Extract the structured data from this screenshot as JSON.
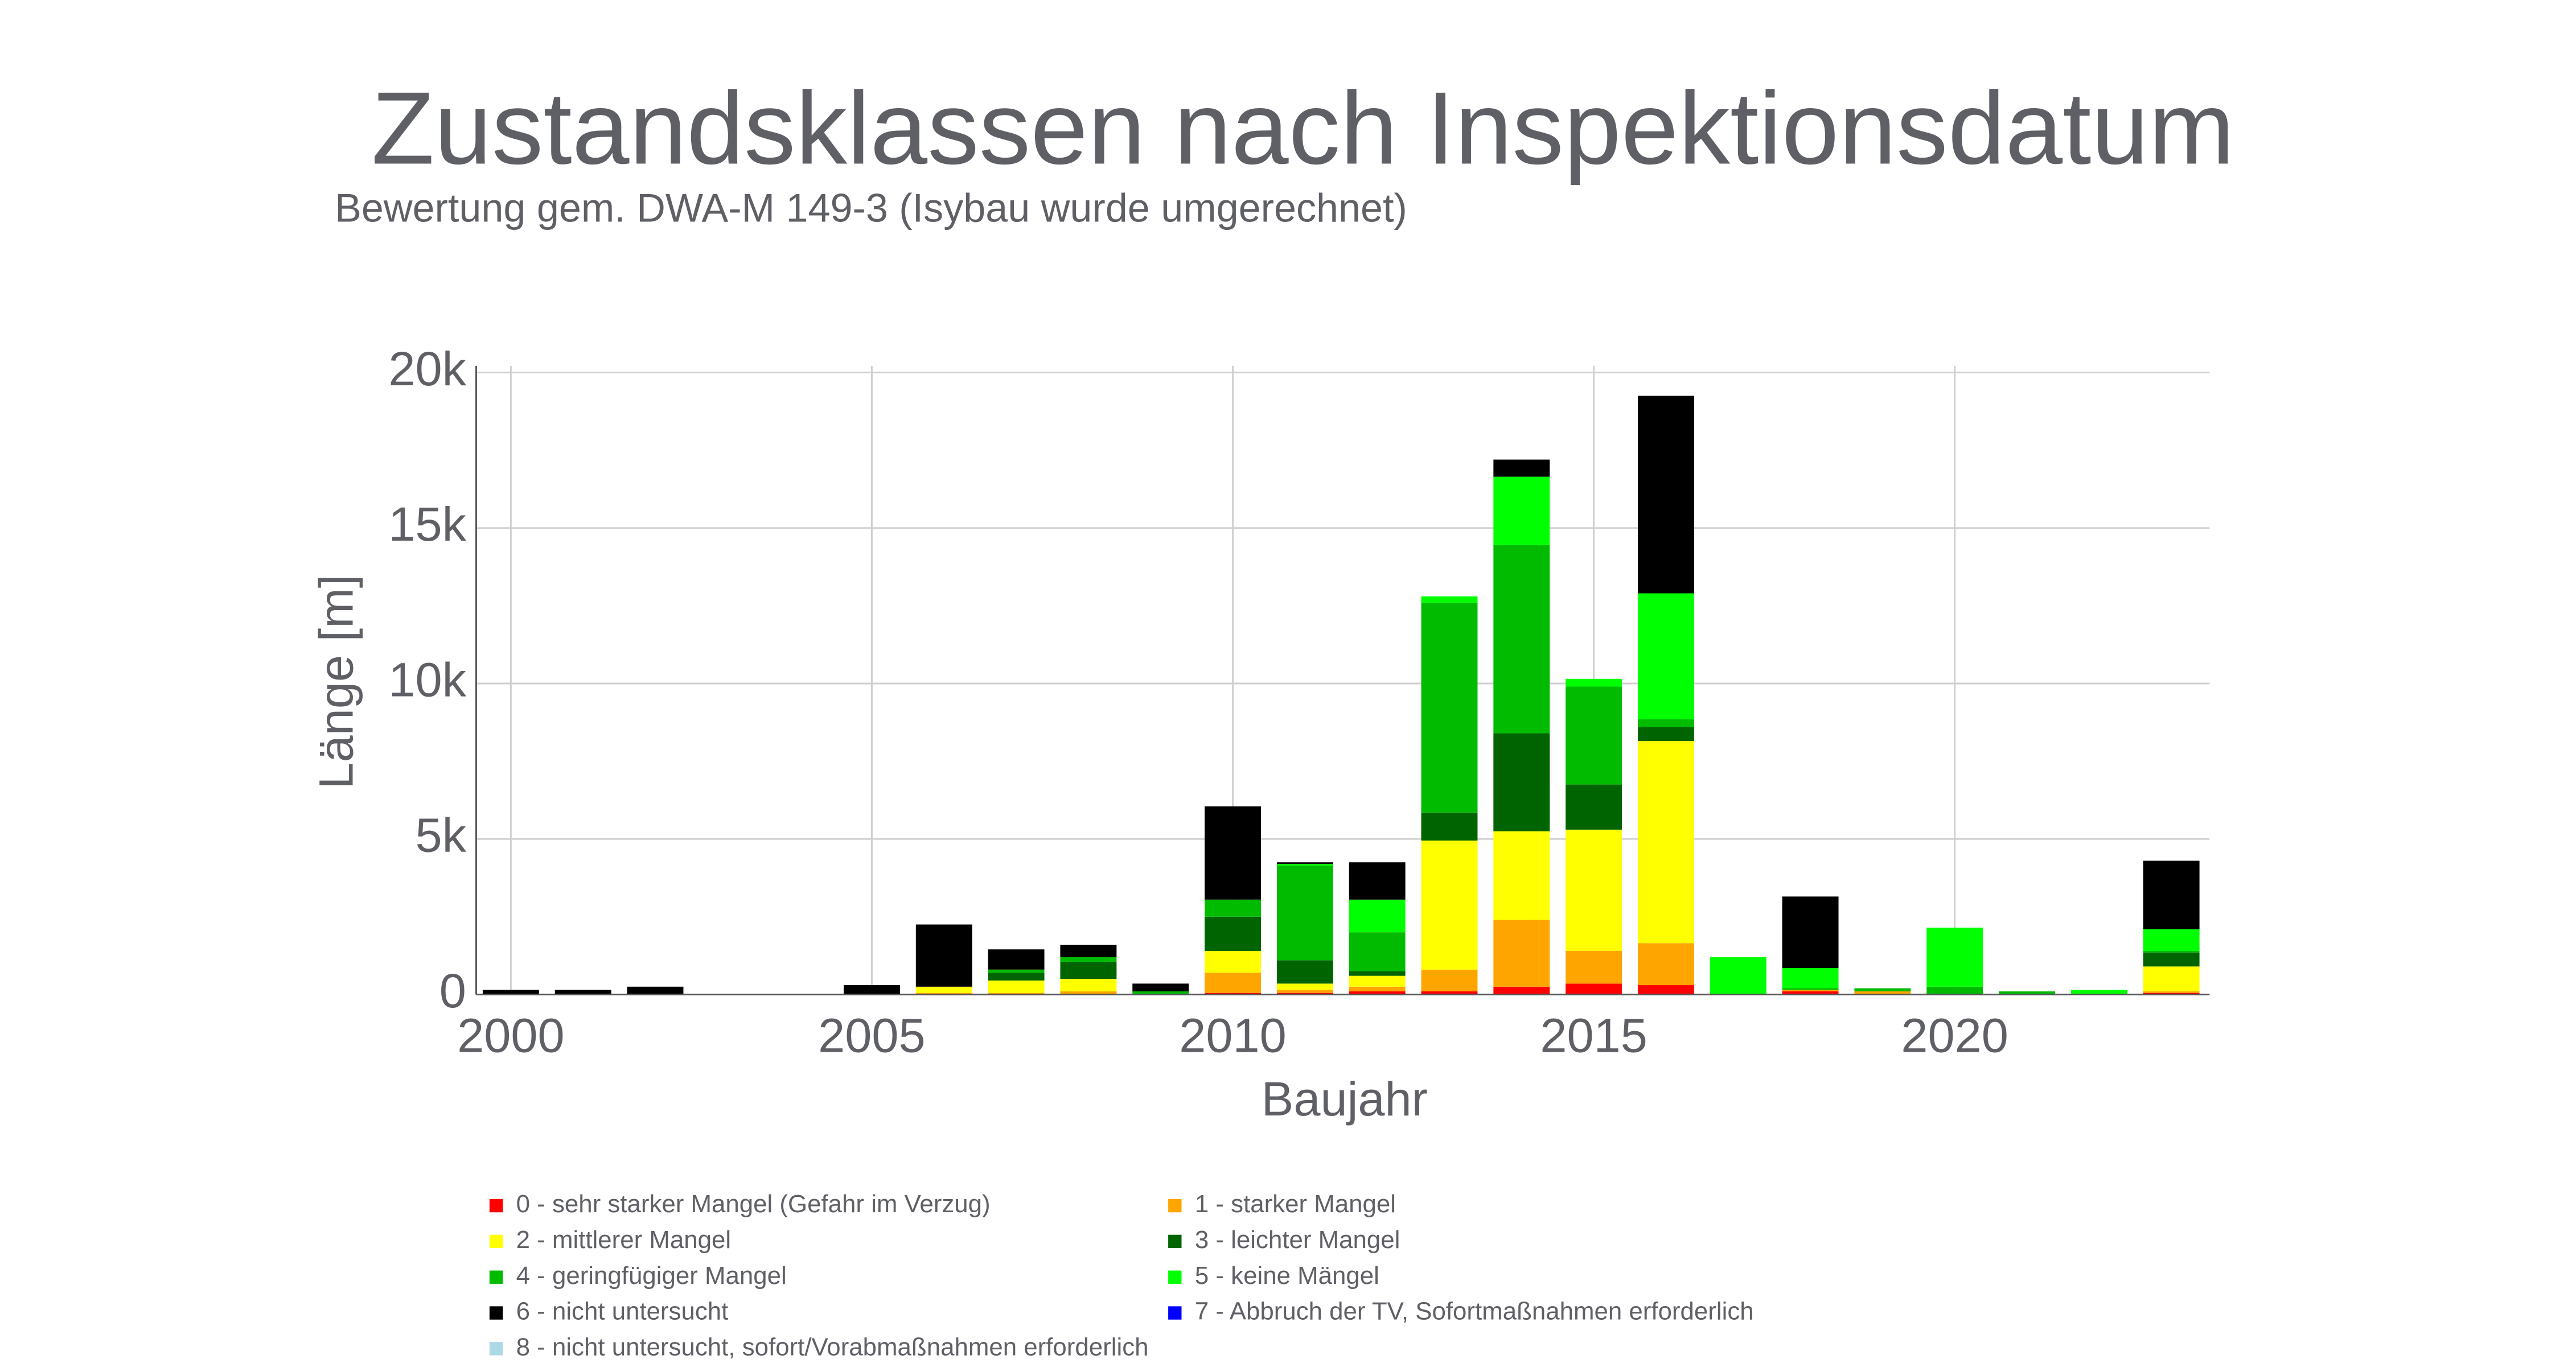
{
  "chart_data": {
    "type": "stacked_bar",
    "title": "Zustandsklassen nach Inspektionsdatum",
    "subtitle": "Bewertung gem. DWA-M 149-3 (Isybau wurde umgerechnet)",
    "x_label": "Baujahr",
    "y_label": "Länge [m]",
    "x": [
      2000,
      2001,
      2002,
      2003,
      2004,
      2005,
      2006,
      2007,
      2008,
      2009,
      2010,
      2011,
      2012,
      2013,
      2014,
      2015,
      2016,
      2017,
      2018,
      2019,
      2020,
      2021,
      2022,
      2023
    ],
    "xlim": [
      1999.52,
      2023.53
    ],
    "xticks": [
      2000,
      2005,
      2010,
      2015,
      2020
    ],
    "ylim": [
      0,
      20000
    ],
    "yticks": [
      0,
      {
        "value": 5000,
        "label": "5k"
      },
      {
        "value": 10000,
        "label": "10k"
      },
      {
        "value": 15000,
        "label": "15k"
      },
      {
        "value": 20000,
        "label": "20k"
      }
    ],
    "grid": true,
    "series": [
      {
        "name": "0 - sehr starker Mangel (Gefahr im Verzug)",
        "color": "#ff0000",
        "values": [
          0,
          0,
          0,
          0,
          0,
          0,
          0,
          0,
          0,
          0,
          50,
          50,
          100,
          100,
          250,
          350,
          300,
          0,
          100,
          0,
          0,
          0,
          0,
          50
        ]
      },
      {
        "name": "1 - starker Mangel",
        "color": "#ffa500",
        "values": [
          0,
          0,
          0,
          0,
          0,
          0,
          50,
          50,
          100,
          0,
          650,
          100,
          150,
          700,
          2150,
          1050,
          1350,
          0,
          50,
          100,
          0,
          0,
          0,
          50
        ]
      },
      {
        "name": "2 - mittlerer Mangel",
        "color": "#ffff00",
        "values": [
          0,
          0,
          0,
          0,
          0,
          0,
          200,
          400,
          400,
          0,
          700,
          200,
          350,
          4150,
          2850,
          3900,
          6500,
          0,
          0,
          0,
          0,
          0,
          0,
          800
        ]
      },
      {
        "name": "3 - leichter Mangel",
        "color": "#006400",
        "values": [
          0,
          0,
          0,
          0,
          0,
          0,
          0,
          250,
          550,
          0,
          1100,
          750,
          150,
          900,
          3150,
          1450,
          450,
          0,
          0,
          0,
          0,
          0,
          0,
          450
        ]
      },
      {
        "name": "4 - geringfügiger Mangel",
        "color": "#00bb00",
        "values": [
          0,
          0,
          0,
          0,
          0,
          0,
          0,
          100,
          150,
          100,
          550,
          3050,
          1250,
          6750,
          6050,
          3150,
          250,
          0,
          50,
          100,
          250,
          100,
          0,
          50
        ]
      },
      {
        "name": "5 - keine Mängel",
        "color": "#00ff00",
        "values": [
          0,
          0,
          0,
          0,
          0,
          0,
          0,
          0,
          0,
          0,
          0,
          50,
          1050,
          200,
          2200,
          250,
          4050,
          1200,
          650,
          0,
          1900,
          0,
          150,
          700
        ]
      },
      {
        "name": "6 - nicht untersucht",
        "color": "#000000",
        "values": [
          150,
          150,
          250,
          0,
          0,
          300,
          2000,
          650,
          400,
          250,
          3000,
          50,
          1200,
          0,
          550,
          0,
          6350,
          0,
          2300,
          0,
          0,
          0,
          0,
          2200
        ]
      },
      {
        "name": "7 - Abbruch der TV, Sofortmaßnahmen erforderlich",
        "color": "#0000ff",
        "values": [
          0,
          0,
          0,
          0,
          0,
          0,
          0,
          0,
          0,
          0,
          0,
          0,
          0,
          0,
          0,
          0,
          0,
          0,
          0,
          0,
          0,
          0,
          0,
          0
        ]
      },
      {
        "name": "8 - nicht untersucht, sofort/Vorabmaßnahmen erforderlich",
        "color": "#add8e6",
        "values": [
          0,
          0,
          0,
          0,
          0,
          0,
          0,
          0,
          0,
          0,
          0,
          0,
          0,
          0,
          0,
          0,
          0,
          0,
          0,
          0,
          0,
          0,
          0,
          0
        ]
      }
    ]
  }
}
